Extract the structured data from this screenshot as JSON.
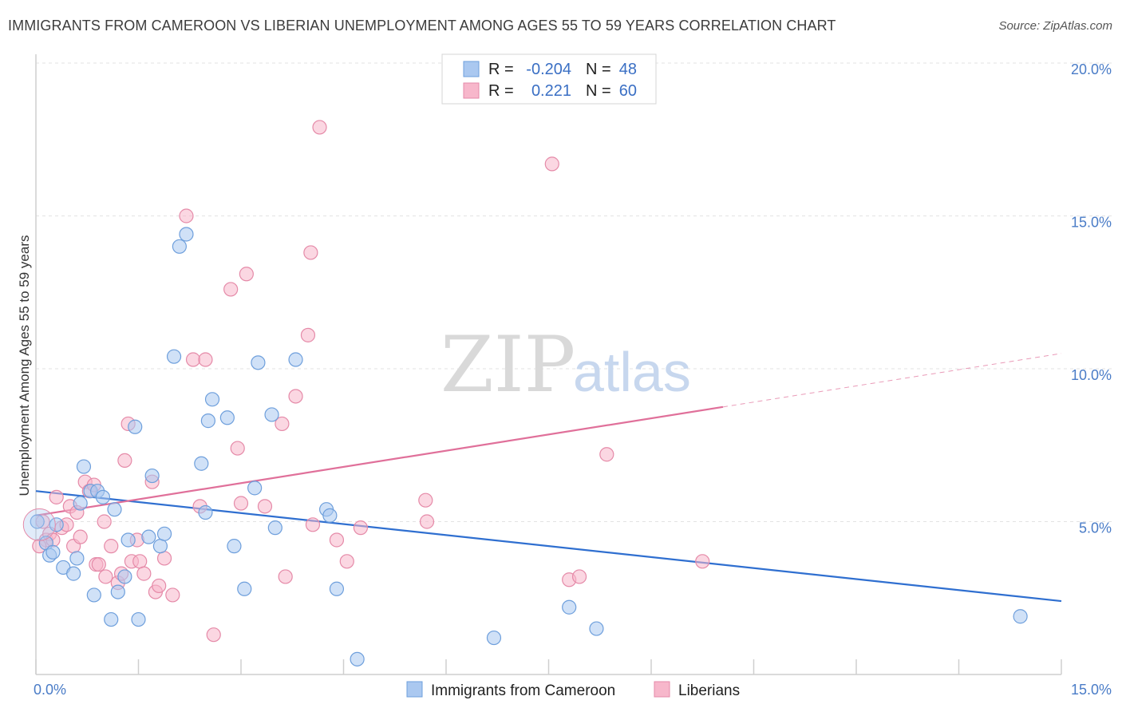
{
  "header": {
    "title": "IMMIGRANTS FROM CAMEROON VS LIBERIAN UNEMPLOYMENT AMONG AGES 55 TO 59 YEARS CORRELATION CHART",
    "source": "Source: ZipAtlas.com"
  },
  "watermark": {
    "zip": "ZIP",
    "atlas": "atlas"
  },
  "stats": [
    {
      "r_label": "R =",
      "r_value": "-0.204",
      "n_label": "N =",
      "n_value": "48",
      "color": "#aac8f0"
    },
    {
      "r_label": "R =",
      "r_value": "0.221",
      "n_label": "N =",
      "n_value": "60",
      "color": "#f7b7cb"
    }
  ],
  "legend": [
    {
      "label": "Immigrants from Cameroon",
      "color": "#aac8f0"
    },
    {
      "label": "Liberians",
      "color": "#f7b7cb"
    }
  ],
  "chart_data": {
    "type": "scatter",
    "title": "IMMIGRANTS FROM CAMEROON VS LIBERIAN UNEMPLOYMENT AMONG AGES 55 TO 59 YEARS CORRELATION CHART",
    "xlabel": "",
    "ylabel": "Unemployment Among Ages 55 to 59 years",
    "xlim": [
      0,
      15
    ],
    "ylim": [
      0,
      20
    ],
    "x_tick_labels": [
      "0.0%",
      "15.0%"
    ],
    "y_ticks": [
      5,
      10,
      15,
      20
    ],
    "y_tick_labels": [
      "5.0%",
      "10.0%",
      "15.0%",
      "20.0%"
    ],
    "grid": true,
    "legend_position": "bottom",
    "series": [
      {
        "name": "Immigrants from Cameroon",
        "color": "#aac8f0",
        "stroke": "#6e9fdc",
        "line_color": "#2f6fd0",
        "trend": {
          "x": [
            0,
            15
          ],
          "y": [
            6.0,
            2.4
          ],
          "solid_until": 15
        },
        "points": [
          [
            0.02,
            5.0
          ],
          [
            0.15,
            4.3
          ],
          [
            0.2,
            3.9
          ],
          [
            0.25,
            4.0
          ],
          [
            0.3,
            4.9
          ],
          [
            0.4,
            3.5
          ],
          [
            0.55,
            3.3
          ],
          [
            0.6,
            3.8
          ],
          [
            0.65,
            5.6
          ],
          [
            0.7,
            6.8
          ],
          [
            0.8,
            6.0
          ],
          [
            0.85,
            2.6
          ],
          [
            0.9,
            6.0
          ],
          [
            0.98,
            5.8
          ],
          [
            1.1,
            1.8
          ],
          [
            1.15,
            5.4
          ],
          [
            1.2,
            2.7
          ],
          [
            1.3,
            3.2
          ],
          [
            1.35,
            4.4
          ],
          [
            1.45,
            8.1
          ],
          [
            1.5,
            1.8
          ],
          [
            1.65,
            4.5
          ],
          [
            1.7,
            6.5
          ],
          [
            1.82,
            4.2
          ],
          [
            1.88,
            4.6
          ],
          [
            2.02,
            10.4
          ],
          [
            2.1,
            14.0
          ],
          [
            2.2,
            14.4
          ],
          [
            2.42,
            6.9
          ],
          [
            2.48,
            5.3
          ],
          [
            2.52,
            8.3
          ],
          [
            2.58,
            9.0
          ],
          [
            2.8,
            8.4
          ],
          [
            2.9,
            4.2
          ],
          [
            3.05,
            2.8
          ],
          [
            3.2,
            6.1
          ],
          [
            3.25,
            10.2
          ],
          [
            3.45,
            8.5
          ],
          [
            3.5,
            4.8
          ],
          [
            3.8,
            10.3
          ],
          [
            4.25,
            5.4
          ],
          [
            4.3,
            5.2
          ],
          [
            4.4,
            2.8
          ],
          [
            4.7,
            0.5
          ],
          [
            6.7,
            1.2
          ],
          [
            7.8,
            2.2
          ],
          [
            8.2,
            1.5
          ],
          [
            14.4,
            1.9
          ]
        ]
      },
      {
        "name": "Liberians",
        "color": "#f7b7cb",
        "stroke": "#e58aa8",
        "line_color": "#e0709a",
        "trend": {
          "x": [
            0,
            15
          ],
          "y": [
            5.2,
            10.5
          ],
          "solid_until": 10.05
        },
        "points": [
          [
            0.1,
            5.0
          ],
          [
            0.15,
            4.4
          ],
          [
            0.2,
            4.6
          ],
          [
            0.25,
            4.4
          ],
          [
            0.3,
            5.8
          ],
          [
            0.38,
            4.8
          ],
          [
            0.45,
            4.9
          ],
          [
            0.5,
            5.5
          ],
          [
            0.55,
            4.2
          ],
          [
            0.6,
            5.3
          ],
          [
            0.65,
            4.5
          ],
          [
            0.72,
            6.3
          ],
          [
            0.78,
            6.0
          ],
          [
            0.85,
            6.2
          ],
          [
            0.88,
            3.6
          ],
          [
            0.92,
            3.6
          ],
          [
            1.0,
            5.0
          ],
          [
            1.02,
            3.2
          ],
          [
            1.1,
            4.2
          ],
          [
            1.2,
            3.0
          ],
          [
            1.25,
            3.3
          ],
          [
            1.3,
            7.0
          ],
          [
            1.35,
            8.2
          ],
          [
            1.4,
            3.7
          ],
          [
            1.48,
            4.4
          ],
          [
            1.52,
            3.7
          ],
          [
            1.58,
            3.3
          ],
          [
            1.7,
            6.3
          ],
          [
            1.75,
            2.7
          ],
          [
            1.8,
            2.9
          ],
          [
            1.88,
            3.8
          ],
          [
            2.0,
            2.6
          ],
          [
            2.2,
            15.0
          ],
          [
            2.3,
            10.3
          ],
          [
            2.4,
            5.5
          ],
          [
            2.48,
            10.3
          ],
          [
            2.6,
            1.3
          ],
          [
            2.85,
            12.6
          ],
          [
            2.95,
            7.4
          ],
          [
            3.0,
            5.6
          ],
          [
            3.08,
            13.1
          ],
          [
            3.35,
            5.5
          ],
          [
            3.6,
            8.2
          ],
          [
            3.65,
            3.2
          ],
          [
            3.8,
            9.1
          ],
          [
            3.98,
            11.1
          ],
          [
            4.02,
            13.8
          ],
          [
            4.05,
            4.9
          ],
          [
            4.15,
            17.9
          ],
          [
            4.4,
            4.4
          ],
          [
            4.55,
            3.7
          ],
          [
            4.75,
            4.8
          ],
          [
            5.7,
            5.7
          ],
          [
            5.72,
            5.0
          ],
          [
            7.55,
            16.7
          ],
          [
            7.8,
            3.1
          ],
          [
            7.95,
            3.2
          ],
          [
            8.35,
            7.2
          ],
          [
            9.75,
            3.7
          ],
          [
            0.05,
            4.2
          ]
        ]
      }
    ]
  }
}
